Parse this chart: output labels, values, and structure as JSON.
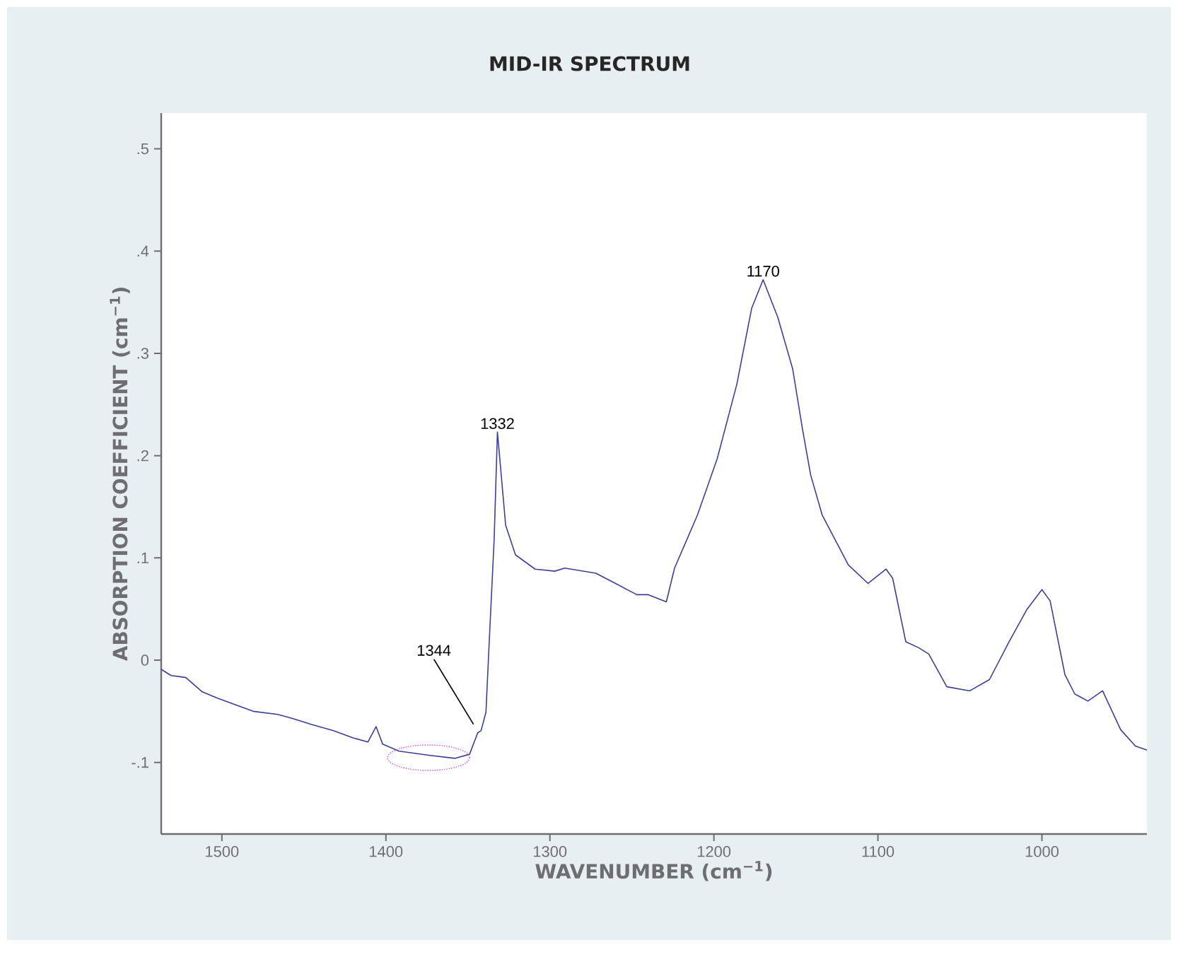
{
  "chart_data": {
    "type": "line",
    "title": "MID-IR SPECTRUM",
    "xlabel": "WAVENUMBER (cm$^{−1}$)",
    "ylabel": "ABSORPTION COEFFICIENT (cm$^{−1}$)",
    "color": "#3b3f98",
    "x": [
      1537,
      1531,
      1522,
      1512,
      1503,
      1491,
      1481,
      1466,
      1457,
      1445,
      1432,
      1420,
      1411,
      1406,
      1402,
      1392,
      1374,
      1358,
      1349,
      1344,
      1342,
      1339,
      1337,
      1334,
      1332,
      1330,
      1327,
      1321,
      1309,
      1297,
      1291,
      1272,
      1260,
      1247,
      1240,
      1229,
      1224,
      1210,
      1198,
      1186,
      1177,
      1170,
      1161,
      1152,
      1146,
      1141,
      1134,
      1118,
      1106,
      1095,
      1091,
      1083,
      1075,
      1069,
      1058,
      1044,
      1032,
      1020,
      1009,
      1000,
      995,
      986,
      980,
      972,
      963,
      952,
      943,
      936
    ],
    "values": [
      -0.009,
      -0.015,
      -0.017,
      -0.031,
      -0.037,
      -0.044,
      -0.05,
      -0.053,
      -0.057,
      -0.063,
      -0.069,
      -0.076,
      -0.08,
      -0.065,
      -0.082,
      -0.089,
      -0.093,
      -0.096,
      -0.092,
      -0.071,
      -0.069,
      -0.051,
      0.018,
      0.118,
      0.223,
      0.187,
      0.132,
      0.103,
      0.089,
      0.087,
      0.09,
      0.085,
      0.075,
      0.064,
      0.064,
      0.057,
      0.09,
      0.142,
      0.197,
      0.27,
      0.344,
      0.372,
      0.335,
      0.285,
      0.226,
      0.181,
      0.142,
      0.093,
      0.075,
      0.089,
      0.08,
      0.018,
      0.012,
      0.006,
      -0.026,
      -0.03,
      -0.019,
      0.018,
      0.05,
      0.069,
      0.058,
      -0.014,
      -0.033,
      -0.04,
      -0.03,
      -0.068,
      -0.084,
      -0.088
    ],
    "xlim": [
      1537,
      936
    ],
    "ylim": [
      -0.17,
      0.535
    ],
    "xticks": [
      1500,
      1400,
      1300,
      1200,
      1100,
      1000
    ],
    "yticks": [
      {
        "value": -0.1,
        "label": "-.1"
      },
      {
        "value": 0,
        "label": "0"
      },
      {
        "value": 0.1,
        "label": ".1"
      },
      {
        "value": 0.2,
        "label": ".2"
      },
      {
        "value": 0.3,
        "label": ".3"
      },
      {
        "value": 0.4,
        "label": ".4"
      },
      {
        "value": 0.5,
        "label": ".5"
      }
    ],
    "annotations": [
      {
        "text": "1332",
        "x": 1332,
        "y": 0.223
      },
      {
        "text": "1170",
        "x": 1170,
        "y": 0.372
      },
      {
        "text": "1344",
        "x": 1344,
        "y": -0.071
      }
    ]
  }
}
